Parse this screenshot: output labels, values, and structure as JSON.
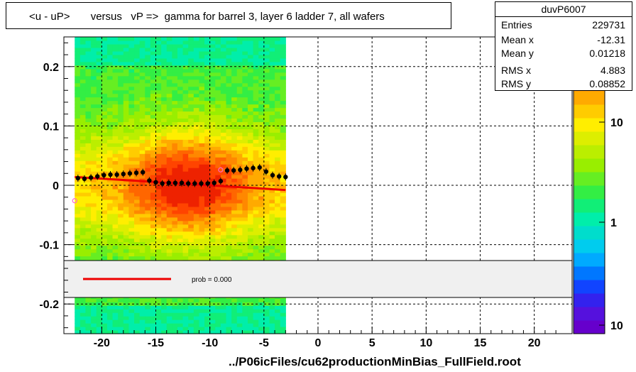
{
  "title": "<u - uP>       versus   vP =>  gamma for barrel 3, layer 6 ladder 7, all wafers",
  "stats": {
    "name": "duvP6007",
    "rows": [
      {
        "label": "Entries",
        "value": "229731"
      },
      {
        "label": "Mean x",
        "value": "-12.31"
      },
      {
        "label": "Mean y",
        "value": "0.01218"
      },
      {
        "label": "RMS x",
        "value": "4.883"
      },
      {
        "label": "RMS y",
        "value": "0.08852"
      }
    ]
  },
  "legend": {
    "prob_text": "prob = 0.000",
    "line_color": "#ee0000"
  },
  "footer": "../P06icFiles/cu62productionMinBias_FullField.root",
  "chart_data": {
    "type": "heatmap",
    "xlim": [
      -23.5,
      23.5
    ],
    "ylim": [
      -0.25,
      0.25
    ],
    "x_ticks": [
      -20,
      -15,
      -10,
      -5,
      0,
      5,
      10,
      15,
      20
    ],
    "x_tick_labels": [
      "-20",
      "-15",
      "-10",
      "-5",
      "0",
      "5",
      "10",
      "15",
      "20"
    ],
    "y_ticks": [
      -0.2,
      -0.1,
      0,
      0.1,
      0.2
    ],
    "y_tick_labels": [
      "-0.2",
      "-0.1",
      "0",
      "0.1",
      "0.2"
    ],
    "grid": true,
    "heatmap_x_range": [
      -22.5,
      -3.0
    ],
    "colorbar": {
      "scale": "log",
      "tick_labels": [
        "10",
        "1",
        "10"
      ]
    },
    "profile_points": {
      "x": [
        -22.2,
        -21.6,
        -21.0,
        -20.4,
        -19.8,
        -19.2,
        -18.6,
        -18.0,
        -17.4,
        -16.8,
        -16.2,
        -15.6,
        -15.0,
        -14.4,
        -13.8,
        -13.2,
        -12.6,
        -12.0,
        -11.4,
        -10.8,
        -10.2,
        -9.6,
        -9.0,
        -8.4,
        -7.8,
        -7.2,
        -6.6,
        -6.0,
        -5.4,
        -4.8,
        -4.2,
        -3.6,
        -3.0
      ],
      "y": [
        0.012,
        0.011,
        0.013,
        0.015,
        0.017,
        0.018,
        0.018,
        0.019,
        0.02,
        0.021,
        0.022,
        0.008,
        0.005,
        0.003,
        0.004,
        0.004,
        0.004,
        0.003,
        0.003,
        0.003,
        0.003,
        0.004,
        0.007,
        0.025,
        0.025,
        0.026,
        0.028,
        0.029,
        0.03,
        0.023,
        0.017,
        0.015,
        0.014
      ]
    },
    "outlier_points": {
      "x": [
        -22.5,
        -9.0
      ],
      "y": [
        -0.026,
        0.026
      ]
    },
    "fit_line": {
      "x": [
        -22.5,
        -3.0
      ],
      "y": [
        0.014,
        -0.008
      ]
    }
  }
}
